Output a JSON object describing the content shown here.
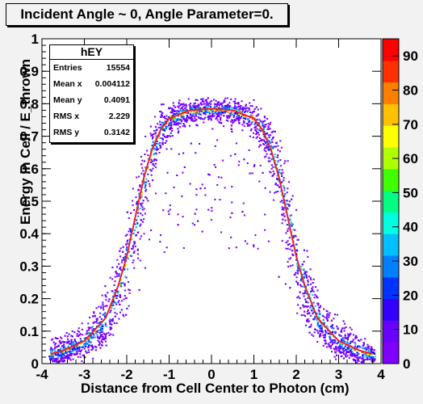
{
  "title": "Incident Angle ~ 0, Angle Parameter=0.",
  "stats": {
    "name": "hEY",
    "rows": [
      {
        "key": "Entries",
        "value": "15554"
      },
      {
        "key": "Mean x",
        "value": "0.004112"
      },
      {
        "key": "Mean y",
        "value": "0.4091"
      },
      {
        "key": "RMS x",
        "value": "2.229"
      },
      {
        "key": "RMS y",
        "value": "0.3142"
      }
    ]
  },
  "chart_data": {
    "type": "heatmap",
    "title": "Incident Angle ~ 0, Angle Parameter=0.",
    "xlabel": "Distance from Cell Center to Photon (cm)",
    "ylabel": "Energy in Cell / E_thrown",
    "xlim": [
      -4,
      4
    ],
    "ylim": [
      0,
      1
    ],
    "xticks": [
      "-4",
      "-3",
      "-2",
      "-1",
      "0",
      "1",
      "2",
      "3",
      "4"
    ],
    "yticks": [
      "0",
      "0.1",
      "0.2",
      "0.3",
      "0.4",
      "0.5",
      "0.6",
      "0.7",
      "0.8",
      "0.9",
      "1"
    ],
    "colorbar": {
      "range": [
        0,
        95
      ],
      "ticks": [
        "0",
        "10",
        "20",
        "30",
        "40",
        "50",
        "60",
        "70",
        "80",
        "90"
      ],
      "colors": [
        "#8000ff",
        "#6a00ff",
        "#3300ff",
        "#0033ff",
        "#0080ff",
        "#00c0ff",
        "#00ffe0",
        "#00ff80",
        "#40ff00",
        "#b0ff00",
        "#ffff00",
        "#ffc000",
        "#ff8000",
        "#ff3000",
        "#ff0000"
      ]
    },
    "fit_curve": {
      "color": "#e8202a",
      "x": [
        -3.8,
        -3.5,
        -3.0,
        -2.5,
        -2.2,
        -2.0,
        -1.8,
        -1.6,
        -1.4,
        -1.2,
        -1.0,
        -0.5,
        0.0,
        0.5,
        1.0,
        1.2,
        1.4,
        1.6,
        1.8,
        2.0,
        2.2,
        2.5,
        3.0,
        3.5,
        3.8
      ],
      "y": [
        0.03,
        0.04,
        0.07,
        0.14,
        0.24,
        0.33,
        0.45,
        0.57,
        0.66,
        0.72,
        0.755,
        0.78,
        0.785,
        0.78,
        0.755,
        0.72,
        0.66,
        0.57,
        0.45,
        0.33,
        0.24,
        0.14,
        0.07,
        0.04,
        0.03
      ]
    }
  }
}
